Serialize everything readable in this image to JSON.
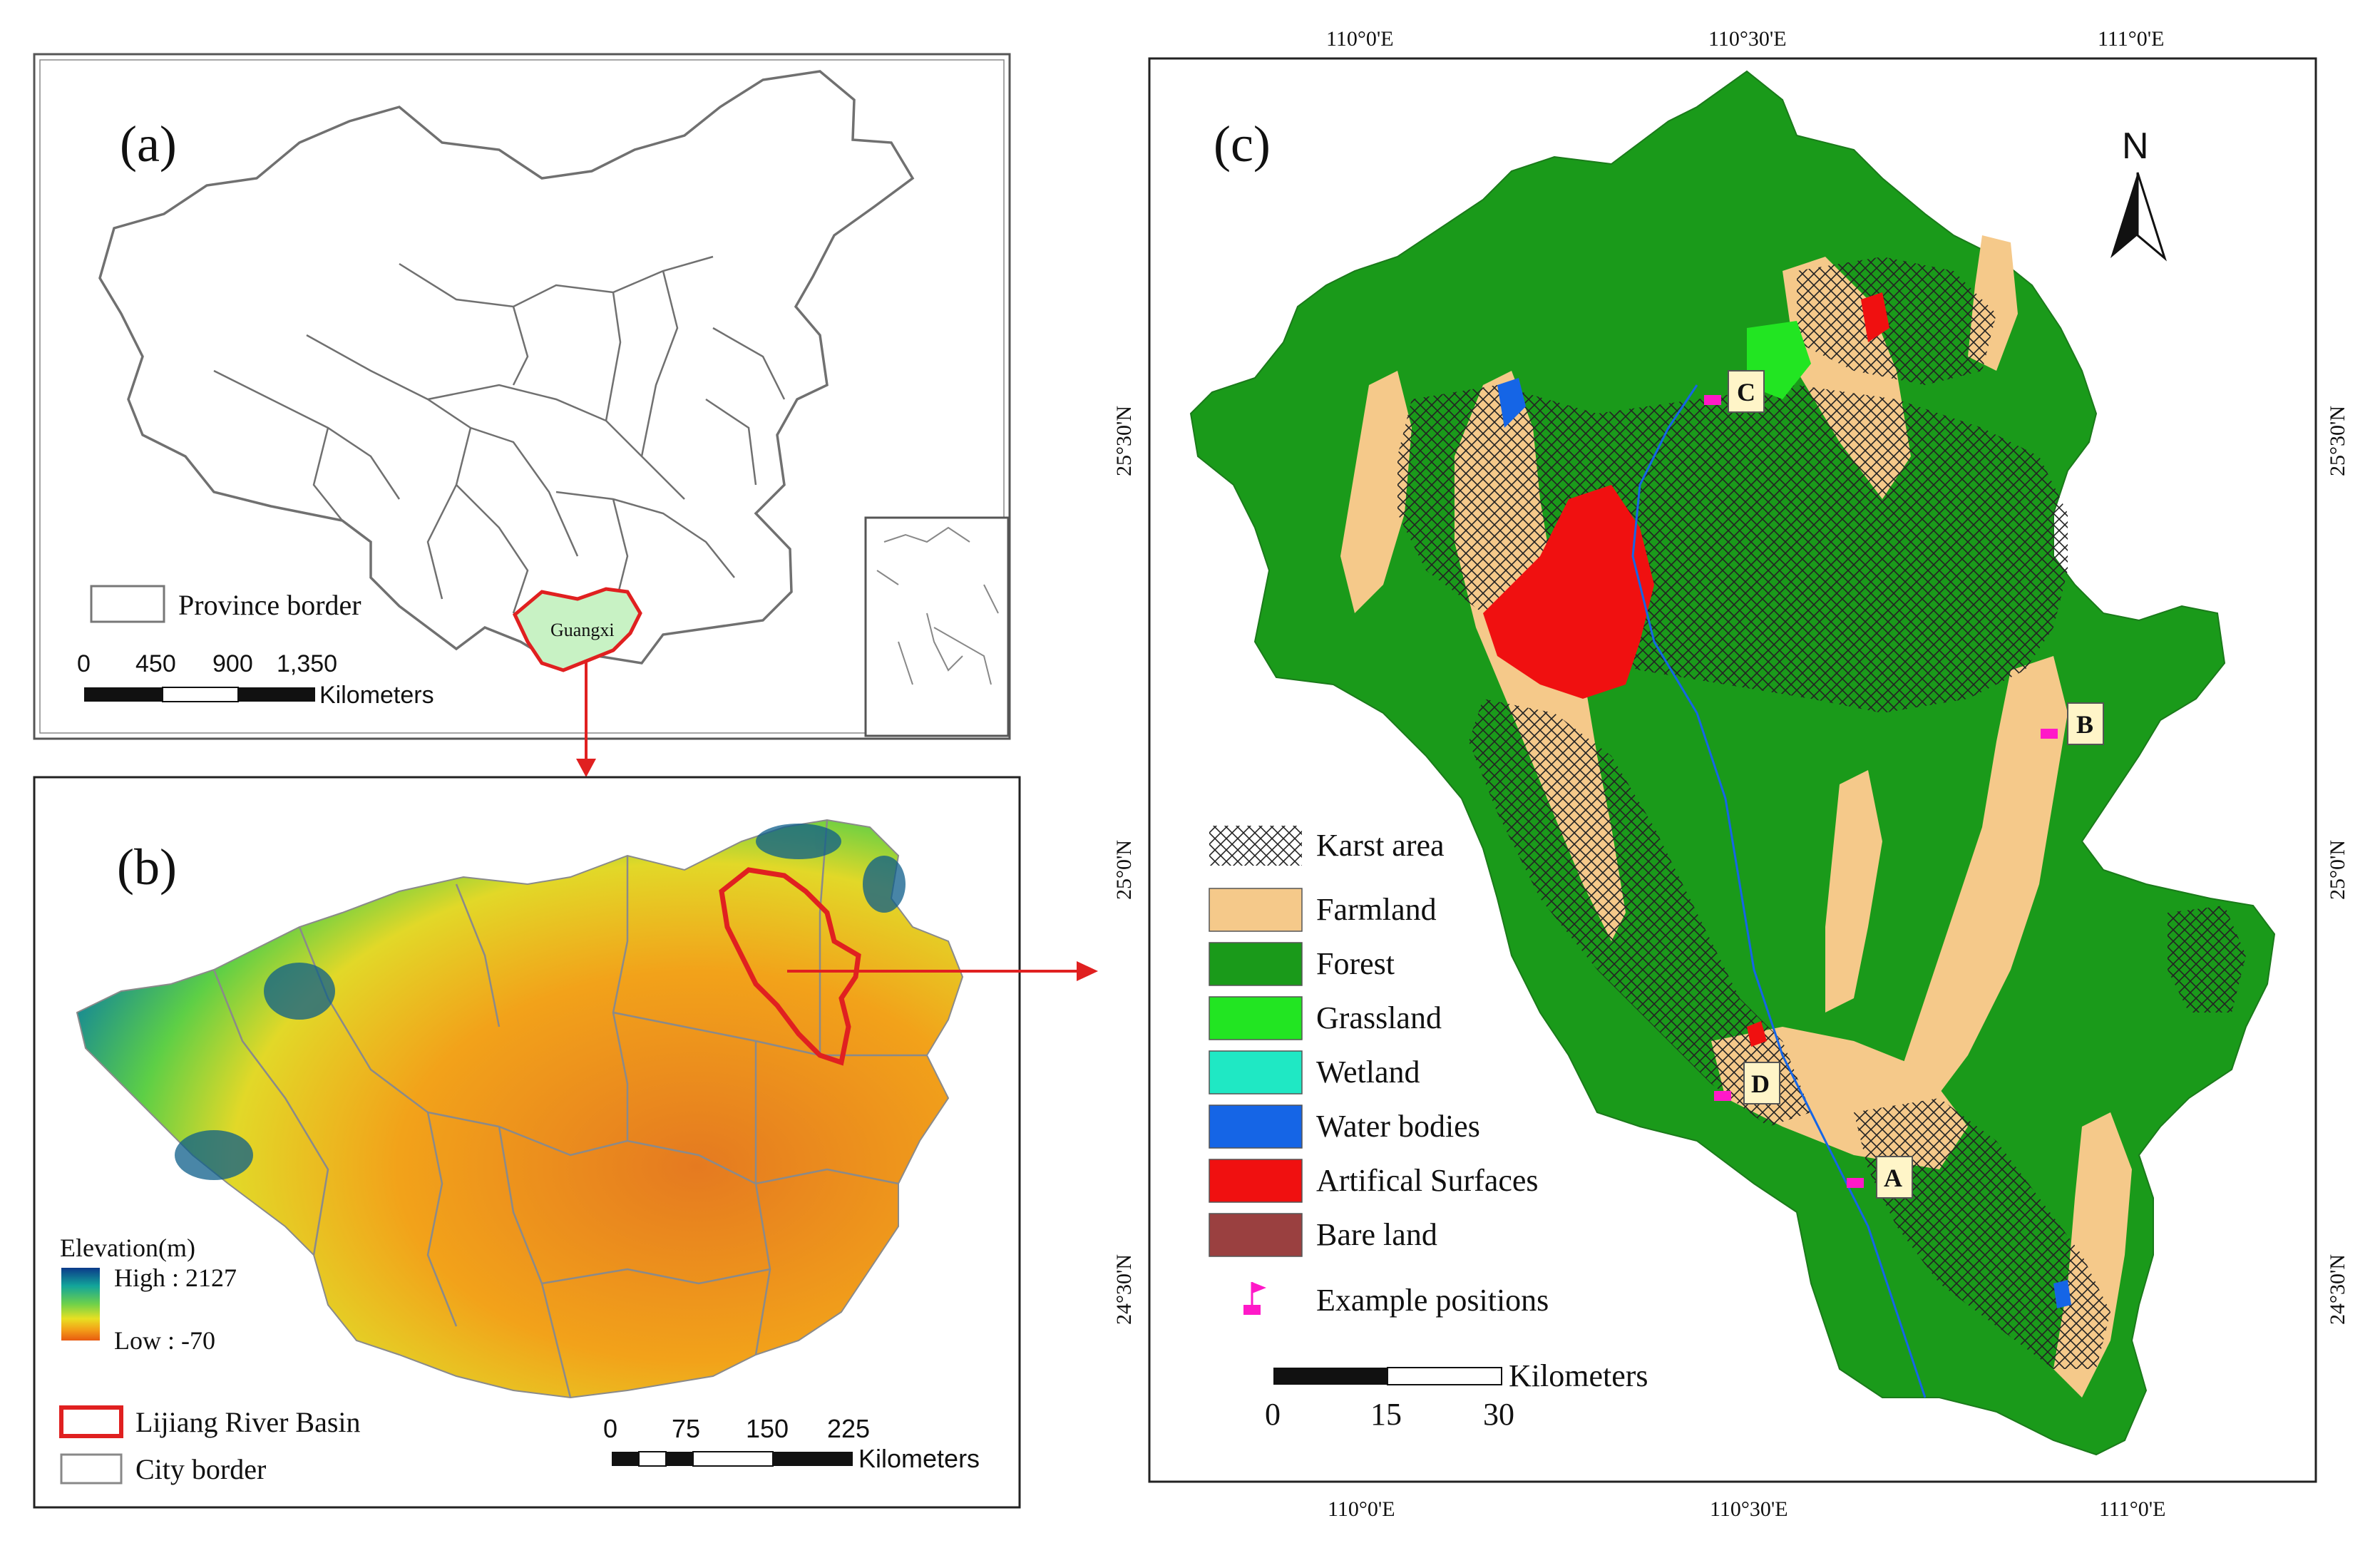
{
  "panel_a": {
    "label": "(a)",
    "legend_province": "Province border",
    "province_name": "Guangxi",
    "scale": {
      "ticks": [
        "0",
        "450",
        "900",
        "1,350"
      ],
      "unit": "Kilometers"
    }
  },
  "panel_b": {
    "label": "(b)",
    "elevation": {
      "title": "Elevation(m)",
      "high": "High : 2127",
      "low": "Low : -70"
    },
    "legend_basin": "Lijiang River Basin",
    "legend_city": "City border",
    "scale": {
      "ticks": [
        "0",
        "75",
        "150",
        "225"
      ],
      "unit": "Kilometers"
    }
  },
  "panel_c": {
    "label": "(c)",
    "north": "N",
    "top_ticks": [
      "110°0'E",
      "110°30'E",
      "111°0'E"
    ],
    "bottom_ticks": [
      "110°0'E",
      "110°30'E",
      "111°0'E"
    ],
    "left_ticks": [
      "25°30'N",
      "25°0'N",
      "24°30'N"
    ],
    "right_ticks": [
      "25°30'N",
      "25°0'N",
      "24°30'N"
    ],
    "legend": [
      {
        "label": "Karst area",
        "color": "hatch"
      },
      {
        "label": "Farmland",
        "color": "#f5c98a"
      },
      {
        "label": "Forest",
        "color": "#1a9a1a"
      },
      {
        "label": "Grassland",
        "color": "#22e522"
      },
      {
        "label": "Wetland",
        "color": "#1fe8c4"
      },
      {
        "label": "Water bodies",
        "color": "#1565e6"
      },
      {
        "label": "Artifical Surfaces",
        "color": "#f01010"
      },
      {
        "label": "Bare land",
        "color": "#9a4040"
      },
      {
        "label": "Example positions",
        "color": "#ff19c8"
      }
    ],
    "points": [
      "C",
      "B",
      "D",
      "A"
    ],
    "scale": {
      "ticks": [
        "0",
        "15",
        "30"
      ],
      "unit": "Kilometers"
    }
  }
}
